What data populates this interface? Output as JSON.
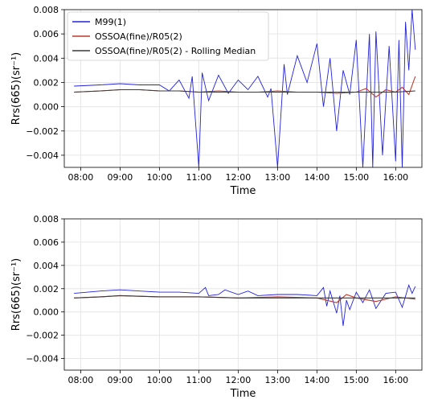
{
  "chart_data": [
    {
      "type": "line",
      "xlabel": "Time",
      "ylabel": "Rrs(665)(sr⁻¹)",
      "ylim": [
        -0.005,
        0.008
      ],
      "xlim": [
        "07:35",
        "16:40"
      ],
      "x_ticks": [
        "08:00",
        "09:00",
        "10:00",
        "11:00",
        "12:00",
        "13:00",
        "14:00",
        "15:00",
        "16:00"
      ],
      "y_ticks": [
        "−0.004",
        "−0.002",
        "0.000",
        "0.002",
        "0.004",
        "0.006",
        "0.008"
      ],
      "grid": true,
      "legend": "top-left",
      "series": [
        {
          "name": "M99(1)",
          "color": "#2222dd",
          "x": [
            "07:50",
            "08:30",
            "09:00",
            "09:30",
            "10:00",
            "10:15",
            "10:30",
            "10:45",
            "10:50",
            "11:00",
            "11:05",
            "11:15",
            "11:30",
            "11:45",
            "12:00",
            "12:15",
            "12:30",
            "12:45",
            "12:50",
            "13:00",
            "13:10",
            "13:15",
            "13:30",
            "13:45",
            "14:00",
            "14:10",
            "14:20",
            "14:30",
            "14:40",
            "14:50",
            "15:00",
            "15:10",
            "15:20",
            "15:25",
            "15:30",
            "15:40",
            "15:50",
            "16:00",
            "16:05",
            "16:10",
            "16:15",
            "16:20",
            "16:25",
            "16:30"
          ],
          "values": [
            0.0017,
            0.0018,
            0.0019,
            0.0018,
            0.0018,
            0.0013,
            0.0022,
            0.0007,
            0.0025,
            -0.005,
            0.0028,
            0.0005,
            0.0026,
            0.0011,
            0.0022,
            0.0014,
            0.0025,
            0.0008,
            0.0015,
            -0.005,
            0.0035,
            0.001,
            0.0042,
            0.002,
            0.0052,
            0.0,
            0.004,
            -0.002,
            0.003,
            0.001,
            0.0055,
            -0.005,
            0.006,
            -0.005,
            0.0062,
            -0.004,
            0.005,
            -0.0045,
            0.0055,
            -0.005,
            0.007,
            0.003,
            0.008,
            0.0047
          ]
        },
        {
          "name": "OSSOA(fine)/R05(2)",
          "color": "#c0392b",
          "x": [
            "07:50",
            "08:30",
            "09:00",
            "09:30",
            "10:00",
            "10:30",
            "11:00",
            "11:30",
            "12:00",
            "12:30",
            "13:00",
            "13:30",
            "14:00",
            "14:30",
            "15:00",
            "15:15",
            "15:30",
            "15:45",
            "16:00",
            "16:10",
            "16:20",
            "16:30"
          ],
          "values": [
            0.0012,
            0.0013,
            0.0014,
            0.0014,
            0.0013,
            0.0013,
            0.0012,
            0.0013,
            0.0012,
            0.0012,
            0.0013,
            0.0012,
            0.0012,
            0.0011,
            0.0012,
            0.0015,
            0.0008,
            0.0014,
            0.0012,
            0.0016,
            0.001,
            0.0025
          ]
        },
        {
          "name": "OSSOA(fine)/R05(2) - Rolling Median",
          "color": "#3a3a3a",
          "x": [
            "07:50",
            "08:30",
            "09:00",
            "09:30",
            "10:00",
            "10:30",
            "11:00",
            "11:30",
            "12:00",
            "12:30",
            "13:00",
            "13:30",
            "14:00",
            "14:30",
            "15:00",
            "15:30",
            "16:00",
            "16:30"
          ],
          "values": [
            0.0012,
            0.0013,
            0.0014,
            0.0014,
            0.0013,
            0.0013,
            0.0012,
            0.0012,
            0.0012,
            0.0012,
            0.0012,
            0.0012,
            0.0012,
            0.0012,
            0.0012,
            0.0012,
            0.0012,
            0.0013
          ]
        }
      ]
    },
    {
      "type": "line",
      "xlabel": "Time",
      "ylabel": "Rrs(665)(sr⁻¹)",
      "ylim": [
        -0.005,
        0.008
      ],
      "xlim": [
        "07:35",
        "16:40"
      ],
      "x_ticks": [
        "08:00",
        "09:00",
        "10:00",
        "11:00",
        "12:00",
        "13:00",
        "14:00",
        "15:00",
        "16:00"
      ],
      "y_ticks": [
        "−0.004",
        "−0.002",
        "0.000",
        "0.002",
        "0.004",
        "0.006",
        "0.008"
      ],
      "grid": true,
      "series": [
        {
          "color": "#2222dd",
          "x": [
            "07:50",
            "08:30",
            "09:00",
            "09:30",
            "10:00",
            "10:30",
            "11:00",
            "11:10",
            "11:15",
            "11:30",
            "11:40",
            "12:00",
            "12:15",
            "12:30",
            "13:00",
            "13:30",
            "14:00",
            "14:10",
            "14:15",
            "14:20",
            "14:30",
            "14:35",
            "14:40",
            "14:45",
            "14:50",
            "15:00",
            "15:10",
            "15:20",
            "15:30",
            "15:45",
            "16:00",
            "16:10",
            "16:20",
            "16:25",
            "16:30"
          ],
          "values": [
            0.0016,
            0.0018,
            0.0019,
            0.0018,
            0.0017,
            0.0017,
            0.0016,
            0.0021,
            0.0014,
            0.0015,
            0.0019,
            0.0015,
            0.0018,
            0.0014,
            0.0015,
            0.0015,
            0.0014,
            0.0021,
            0.0005,
            0.0018,
            -0.0001,
            0.0014,
            -0.0012,
            0.001,
            0.0002,
            0.0017,
            0.0008,
            0.0019,
            0.0003,
            0.0016,
            0.0017,
            0.0004,
            0.0023,
            0.0016,
            0.0022
          ]
        },
        {
          "color": "#c0392b",
          "x": [
            "07:50",
            "08:30",
            "09:00",
            "10:00",
            "11:00",
            "12:00",
            "13:00",
            "14:00",
            "14:30",
            "14:45",
            "15:00",
            "15:30",
            "16:00",
            "16:30"
          ],
          "values": [
            0.0012,
            0.0013,
            0.0014,
            0.0013,
            0.0013,
            0.0012,
            0.0013,
            0.0012,
            0.0008,
            0.0015,
            0.0012,
            0.0009,
            0.0013,
            0.0011
          ]
        },
        {
          "color": "#3a3a3a",
          "x": [
            "07:50",
            "08:30",
            "09:00",
            "10:00",
            "11:00",
            "12:00",
            "13:00",
            "14:00",
            "15:00",
            "16:00",
            "16:30"
          ],
          "values": [
            0.0012,
            0.0013,
            0.0014,
            0.0013,
            0.0013,
            0.0012,
            0.0012,
            0.0012,
            0.0012,
            0.0012,
            0.0012
          ]
        }
      ]
    }
  ]
}
